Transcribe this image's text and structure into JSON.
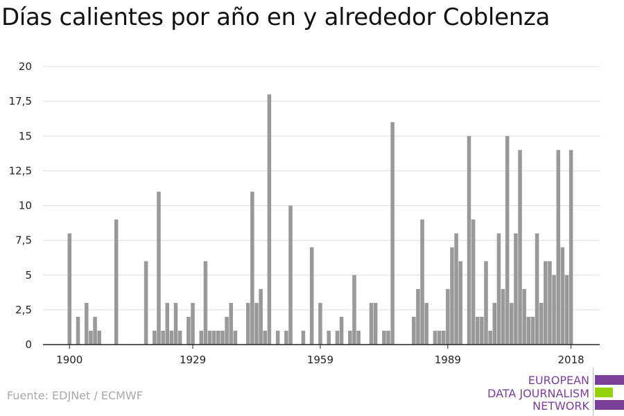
{
  "title": "Días calientes por año en y alrededor Coblenza",
  "source": "Fuente: EDJNet / ECMWF",
  "logo": {
    "lines": [
      "EUROPEAN",
      "DATA JOURNALISM",
      "NETWORK"
    ],
    "text_color": "#7b3f98",
    "bar_colors": [
      "#7b3f98",
      "#94d10f",
      "#7b3f98"
    ]
  },
  "chart_data": {
    "type": "bar",
    "title": "",
    "xlabel": "",
    "ylabel": "",
    "bar_color": "#999999",
    "grid": true,
    "ylim": [
      0,
      20
    ],
    "yticks": [
      "0",
      "2,5",
      "5",
      "7,5",
      "10",
      "12,5",
      "15",
      "17,5",
      "20"
    ],
    "xticks": [
      "1900",
      "1929",
      "1959",
      "1989",
      "2018"
    ],
    "x_start": 1894,
    "x_end": 2019,
    "years": [
      1894,
      1895,
      1896,
      1897,
      1898,
      1899,
      1900,
      1901,
      1902,
      1903,
      1904,
      1905,
      1906,
      1907,
      1908,
      1909,
      1910,
      1911,
      1912,
      1913,
      1914,
      1915,
      1916,
      1917,
      1918,
      1919,
      1920,
      1921,
      1922,
      1923,
      1924,
      1925,
      1926,
      1927,
      1928,
      1929,
      1930,
      1931,
      1932,
      1933,
      1934,
      1935,
      1936,
      1937,
      1938,
      1939,
      1940,
      1941,
      1942,
      1943,
      1944,
      1945,
      1946,
      1947,
      1948,
      1949,
      1950,
      1951,
      1952,
      1953,
      1954,
      1955,
      1956,
      1957,
      1958,
      1959,
      1960,
      1961,
      1962,
      1963,
      1964,
      1965,
      1966,
      1967,
      1968,
      1969,
      1970,
      1971,
      1972,
      1973,
      1974,
      1975,
      1976,
      1977,
      1978,
      1979,
      1980,
      1981,
      1982,
      1983,
      1984,
      1985,
      1986,
      1987,
      1988,
      1989,
      1990,
      1991,
      1992,
      1993,
      1994,
      1995,
      1996,
      1997,
      1998,
      1999,
      2000,
      2001,
      2002,
      2003,
      2004,
      2005,
      2006,
      2007,
      2008,
      2009,
      2010,
      2011,
      2012,
      2013,
      2014,
      2015,
      2016,
      2017,
      2018,
      2019
    ],
    "values": [
      0,
      0,
      0,
      0,
      0,
      0,
      8,
      0,
      2,
      0,
      3,
      1,
      2,
      1,
      0,
      0,
      0,
      9,
      0,
      0,
      0,
      0,
      0,
      0,
      6,
      0,
      1,
      11,
      1,
      3,
      1,
      3,
      1,
      0,
      2,
      3,
      0,
      1,
      6,
      1,
      1,
      1,
      1,
      2,
      3,
      1,
      0,
      0,
      3,
      11,
      3,
      4,
      1,
      18,
      0,
      1,
      0,
      1,
      10,
      0,
      0,
      1,
      0,
      7,
      0,
      3,
      0,
      1,
      0,
      1,
      2,
      0,
      1,
      5,
      1,
      0,
      0,
      3,
      3,
      0,
      1,
      1,
      16,
      0,
      0,
      0,
      0,
      2,
      4,
      9,
      3,
      0,
      1,
      1,
      1,
      4,
      7,
      8,
      6,
      0,
      15,
      9,
      2,
      2,
      6,
      1,
      3,
      8,
      4,
      15,
      3,
      8,
      14,
      4,
      2,
      2,
      8,
      3,
      6,
      6,
      5,
      14,
      7,
      5,
      14,
      0
    ]
  }
}
